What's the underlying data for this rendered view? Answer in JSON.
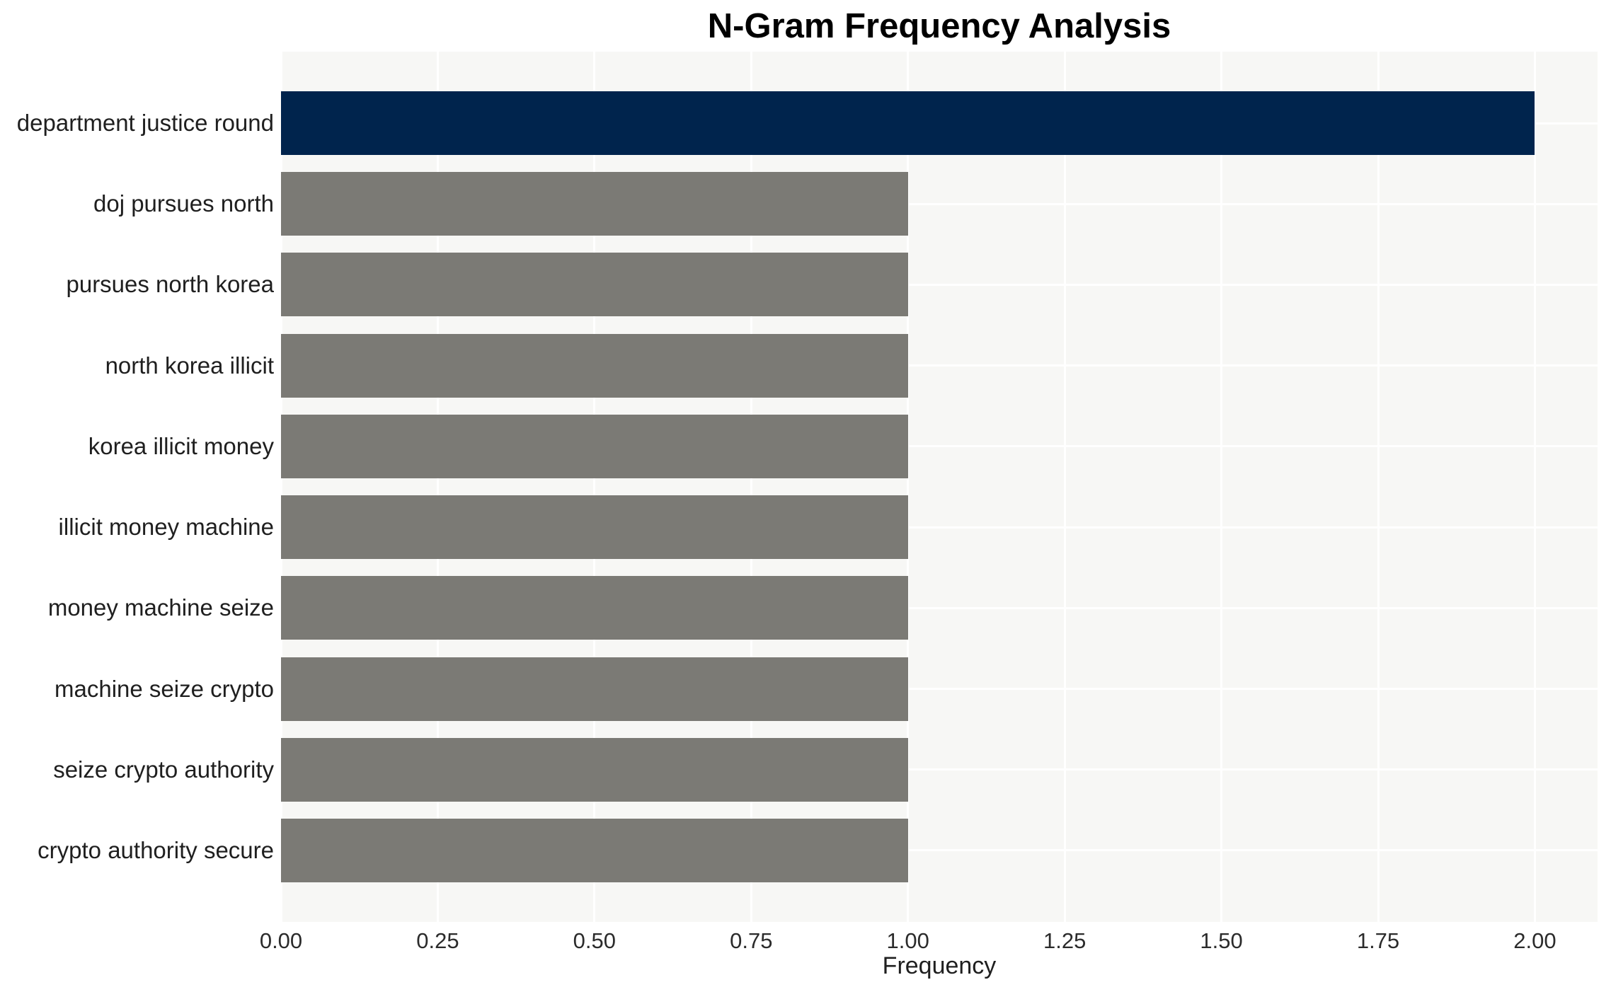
{
  "chart_data": {
    "type": "bar",
    "orientation": "horizontal",
    "title": "N-Gram Frequency Analysis",
    "xlabel": "Frequency",
    "ylabel": "",
    "categories": [
      "department justice round",
      "doj pursues north",
      "pursues north korea",
      "north korea illicit",
      "korea illicit money",
      "illicit money machine",
      "money machine seize",
      "machine seize crypto",
      "seize crypto authority",
      "crypto authority secure"
    ],
    "values": [
      2,
      1,
      1,
      1,
      1,
      1,
      1,
      1,
      1,
      1
    ],
    "xlim": [
      0,
      2.1
    ],
    "xticks": [
      0,
      0.25,
      0.5,
      0.75,
      1.0,
      1.25,
      1.5,
      1.75,
      2.0
    ],
    "xtick_labels": [
      "0.00",
      "0.25",
      "0.50",
      "0.75",
      "1.00",
      "1.25",
      "1.50",
      "1.75",
      "2.00"
    ],
    "grid": true,
    "legend": "none",
    "bar_colors": [
      "#00244d",
      "#7b7a75",
      "#7b7a75",
      "#7b7a75",
      "#7b7a75",
      "#7b7a75",
      "#7b7a75",
      "#7b7a75",
      "#7b7a75",
      "#7b7a75"
    ],
    "colors": {
      "highlight_bar": "#00244d",
      "default_bar": "#7b7a75",
      "plot_background": "#f7f7f5",
      "figure_background": "#ffffff",
      "gridline": "#ffffff",
      "tick_text": "#2b2b2b",
      "label_text": "#1f1f1f",
      "title_text": "#000000"
    }
  }
}
